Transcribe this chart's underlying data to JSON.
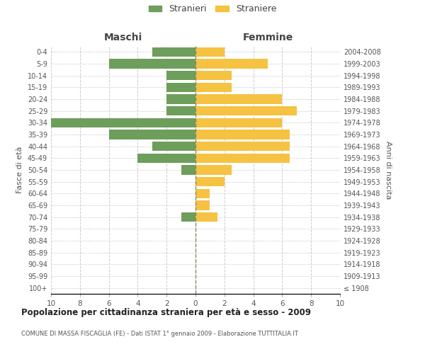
{
  "age_groups": [
    "100+",
    "95-99",
    "90-94",
    "85-89",
    "80-84",
    "75-79",
    "70-74",
    "65-69",
    "60-64",
    "55-59",
    "50-54",
    "45-49",
    "40-44",
    "35-39",
    "30-34",
    "25-29",
    "20-24",
    "15-19",
    "10-14",
    "5-9",
    "0-4"
  ],
  "birth_years": [
    "≤ 1908",
    "1909-1913",
    "1914-1918",
    "1919-1923",
    "1924-1928",
    "1929-1933",
    "1934-1938",
    "1939-1943",
    "1944-1948",
    "1949-1953",
    "1954-1958",
    "1959-1963",
    "1964-1968",
    "1969-1973",
    "1974-1978",
    "1979-1983",
    "1984-1988",
    "1989-1993",
    "1994-1998",
    "1999-2003",
    "2004-2008"
  ],
  "males": [
    0,
    0,
    0,
    0,
    0,
    0,
    1,
    0,
    0,
    0,
    1,
    4,
    3,
    6,
    10,
    2,
    2,
    2,
    2,
    6,
    3
  ],
  "females": [
    0,
    0,
    0,
    0,
    0,
    0,
    1.5,
    1,
    1,
    2,
    2.5,
    6.5,
    6.5,
    6.5,
    6,
    7,
    6,
    2.5,
    2.5,
    5,
    2
  ],
  "male_color": "#6d9e5b",
  "female_color": "#f5c242",
  "male_label": "Stranieri",
  "female_label": "Straniere",
  "title": "Popolazione per cittadinanza straniera per età e sesso - 2009",
  "subtitle": "COMUNE DI MASSA FISCAGLIA (FE) - Dati ISTAT 1° gennaio 2009 - Elaborazione TUTTITALIA.IT",
  "left_header": "Maschi",
  "right_header": "Femmine",
  "left_yaxis_label": "Fasce di età",
  "right_yaxis_label": "Anni di nascita",
  "xlim": 10,
  "bg_color": "#ffffff",
  "grid_color": "#cccccc",
  "bar_height": 0.8
}
